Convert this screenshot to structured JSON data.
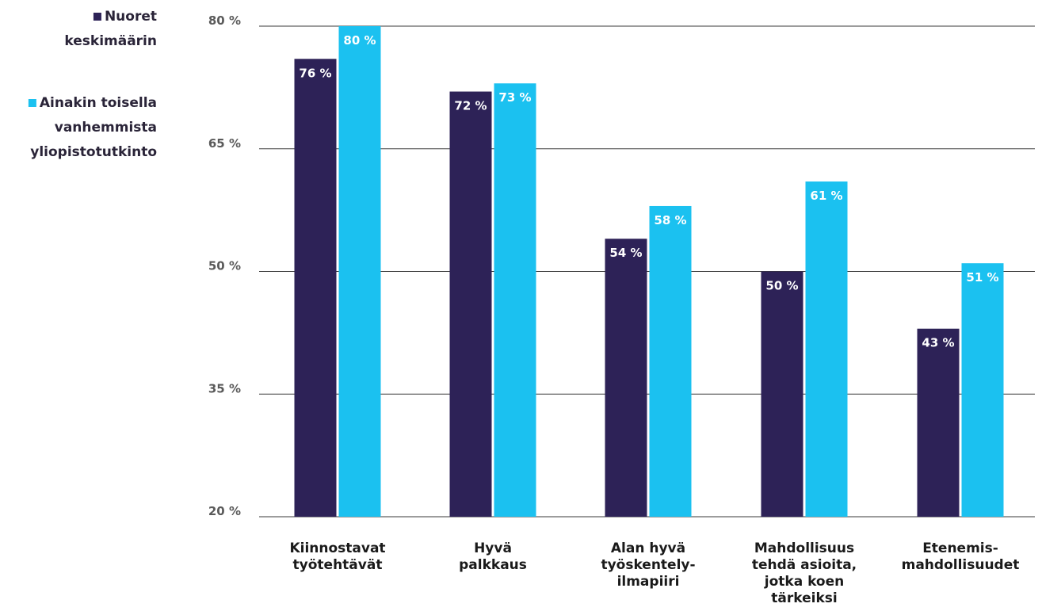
{
  "chart_data": {
    "type": "bar",
    "categories": [
      [
        "Kiinnostavat",
        "työtehtävät"
      ],
      [
        "Hyvä",
        "palkkaus"
      ],
      [
        "Alan hyvä",
        "työskentely-",
        "ilmapiiri"
      ],
      [
        "Mahdollisuus",
        "tehdä asioita,",
        "jotka koen",
        "tärkeiksi"
      ],
      [
        "Etenemis-",
        "mahdollisuudet"
      ]
    ],
    "series": [
      {
        "name": [
          "Nuoret",
          "keskimäärin"
        ],
        "color": "#2d2257",
        "values": [
          76,
          72,
          54,
          50,
          43
        ],
        "labels": [
          "76 %",
          "72 %",
          "54 %",
          "50 %",
          "43 %"
        ]
      },
      {
        "name": [
          "Ainakin toisella",
          "vanhemmista",
          "yliopistotutkinto"
        ],
        "color": "#1bc1f0",
        "values": [
          80,
          73,
          58,
          61,
          51
        ],
        "labels": [
          "80 %",
          "73 %",
          "58 %",
          "61 %",
          "51 %"
        ]
      }
    ],
    "ylim": [
      20,
      80
    ],
    "yticks": [
      20,
      35,
      50,
      65,
      80
    ],
    "ytick_labels": [
      "20 %",
      "35 %",
      "50 %",
      "65 %",
      "80 %"
    ],
    "grid": true,
    "legend_position": "top-left"
  }
}
